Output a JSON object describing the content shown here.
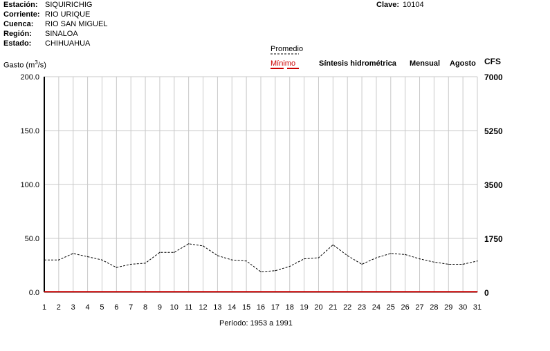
{
  "header": {
    "station_label": "Estación:",
    "station": "SIQUIRICHIG",
    "current_label": "Corriente:",
    "current": "RIO URIQUE",
    "basin_label": "Cuenca:",
    "basin": "RIO SAN MIGUEL",
    "region_label": "Región:",
    "region": "SINALOA",
    "state_label": "Estado:",
    "state": "CHIHUAHUA",
    "key_label": "Clave:",
    "key": "10104"
  },
  "legend": {
    "average": "Promedio",
    "minimum": "Mínimo"
  },
  "titles": {
    "synthesis": "Síntesis hidrométrica",
    "monthly": "Mensual",
    "month": "Agosto"
  },
  "axes": {
    "left_label_prefix": "Gasto (m",
    "left_label_sup": "3",
    "left_label_suffix": "/s)",
    "right_label": "CFS",
    "period": "Período:  1953 a 1991"
  },
  "colors": {
    "average": "#000000",
    "minimum": "#cc0000",
    "grid": "#c8c8c8",
    "axis": "#000000"
  },
  "chart_data": {
    "type": "line",
    "x": [
      1,
      2,
      3,
      4,
      5,
      6,
      7,
      8,
      9,
      10,
      11,
      12,
      13,
      14,
      15,
      16,
      17,
      18,
      19,
      20,
      21,
      22,
      23,
      24,
      25,
      26,
      27,
      28,
      29,
      30,
      31
    ],
    "xlim": [
      1,
      31
    ],
    "ylim": [
      0,
      200
    ],
    "yticks": [
      "0.0",
      "50.0",
      "100.0",
      "150.0",
      "200.0"
    ],
    "y2ticks": [
      "0",
      "1750",
      "3500",
      "5250",
      "7000"
    ],
    "xticks": [
      "1",
      "2",
      "3",
      "4",
      "5",
      "6",
      "7",
      "8",
      "9",
      "10",
      "11",
      "12",
      "13",
      "14",
      "15",
      "16",
      "17",
      "18",
      "19",
      "20",
      "21",
      "22",
      "23",
      "24",
      "25",
      "26",
      "27",
      "28",
      "29",
      "30",
      "31"
    ],
    "series": [
      {
        "name": "Promedio",
        "style": "dashed",
        "values": [
          30,
          30,
          36,
          33,
          30,
          23,
          26,
          27,
          37,
          37,
          45,
          43,
          34,
          30,
          29,
          19,
          20,
          24,
          31,
          32,
          44,
          34,
          26,
          32,
          36,
          35,
          31,
          28,
          26,
          26,
          29
        ]
      },
      {
        "name": "Mínimo",
        "style": "solid",
        "values": [
          0.5,
          0.5,
          0.5,
          0.5,
          0.5,
          0.5,
          0.5,
          0.5,
          0.5,
          0.5,
          0.5,
          0.5,
          0.5,
          0.5,
          0.5,
          0.5,
          0.5,
          0.5,
          0.5,
          0.5,
          0.5,
          0.5,
          0.5,
          0.5,
          0.5,
          0.5,
          0.5,
          0.5,
          0.5,
          0.5,
          0.5
        ]
      }
    ]
  }
}
